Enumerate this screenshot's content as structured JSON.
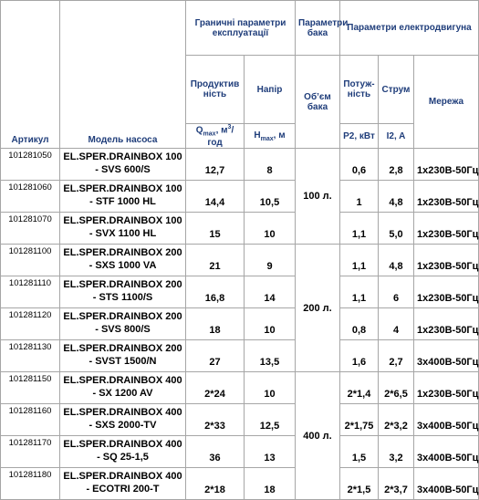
{
  "header": {
    "group_limits": "Граничні параметри експлуатації",
    "group_tank": "Параметри бака",
    "group_motor": "Параметри електродвигуна",
    "article": "Артикул",
    "model": "Модель насоса",
    "flow": "Продуктивність",
    "head": "Напір",
    "volume": "Об’єм бака",
    "power": "Потуж-ність",
    "current": "Струм",
    "network": "Мережа",
    "flow_unit": {
      "sym": "Q",
      "sub": "max",
      "unit": ", м",
      "sup": "3",
      "rest": "/год"
    },
    "head_unit": {
      "sym": "H",
      "sub": "max",
      "unit": ", м"
    },
    "power_unit": "P2, кВт",
    "current_unit": "I2, A"
  },
  "table": {
    "rows": [
      [
        "101281050",
        "EL.SPER.DRAINBOX 100 - SVS 600/S",
        "12,7",
        "8",
        "0,6",
        "2,8",
        "1x230В-50Гц"
      ],
      [
        "101281060",
        "EL.SPER.DRAINBOX 100 - STF 1000 HL",
        "14,4",
        "10,5",
        "1",
        "4,8",
        "1x230В-50Гц"
      ],
      [
        "101281070",
        "EL.SPER.DRAINBOX 100 - SVX 1100 HL",
        "15",
        "10",
        "1,1",
        "5,0",
        "1x230В-50Гц"
      ],
      [
        "101281100",
        "EL.SPER.DRAINBOX 200 - SXS 1000 VA",
        "21",
        "9",
        "1,1",
        "4,8",
        "1x230В-50Гц"
      ],
      [
        "101281110",
        "EL.SPER.DRAINBOX 200 - STS 1100/S",
        "16,8",
        "14",
        "1,1",
        "6",
        "1x230В-50Гц"
      ],
      [
        "101281120",
        "EL.SPER.DRAINBOX 200 - SVS 800/S",
        "18",
        "10",
        "0,8",
        "4",
        "1x230В-50Гц"
      ],
      [
        "101281130",
        "EL.SPER.DRAINBOX 200 - SVST 1500/N",
        "27",
        "13,5",
        "1,6",
        "2,7",
        "3x400В-50Гц"
      ],
      [
        "101281150",
        "EL.SPER.DRAINBOX 400 - SX 1200 AV",
        "2*24",
        "10",
        "2*1,4",
        "2*6,5",
        "1x230В-50Гц"
      ],
      [
        "101281160",
        "EL.SPER.DRAINBOX 400 - SXS 2000-TV",
        "2*33",
        "12,5",
        "2*1,75",
        "2*3,2",
        "3x400В-50Гц"
      ],
      [
        "101281170",
        "EL.SPER.DRAINBOX 400 - SQ 25-1,5",
        "36",
        "13",
        "1,5",
        "3,2",
        "3x400В-50Гц"
      ],
      [
        "101281180",
        "EL.SPER.DRAINBOX 400 - ECOTRI 200-T",
        "2*18",
        "18",
        "2*1,5",
        "2*3,7",
        "3x400В-50Гц"
      ]
    ],
    "tanks": [
      {
        "label": "100 л.",
        "span": 3
      },
      {
        "label": "200 л.",
        "span": 4
      },
      {
        "label": "400 л.",
        "span": 4
      }
    ]
  }
}
